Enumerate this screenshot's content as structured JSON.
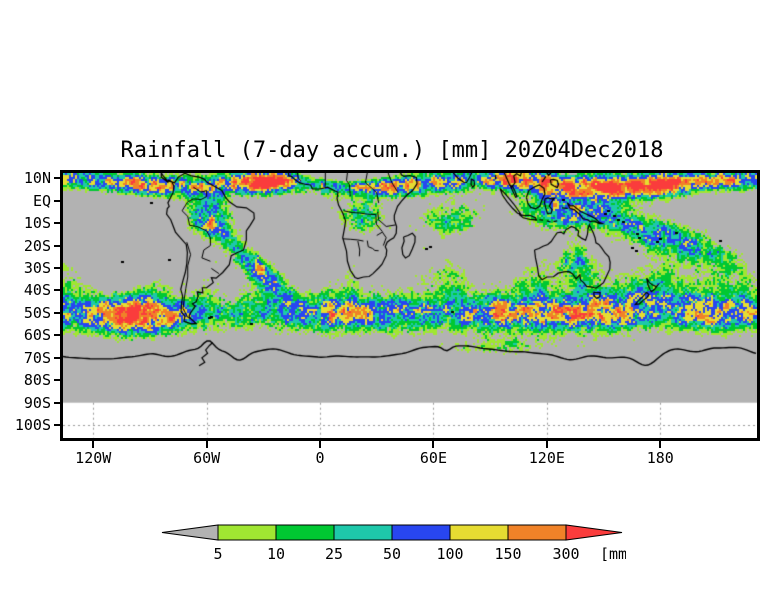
{
  "title": "Rainfall (7-day accum.) [mm] 20Z04Dec2018",
  "axes": {
    "lat_ticks": [
      {
        "label": "10N",
        "value": 10
      },
      {
        "label": "EQ",
        "value": 0
      },
      {
        "label": "10S",
        "value": -10
      },
      {
        "label": "20S",
        "value": -20
      },
      {
        "label": "30S",
        "value": -30
      },
      {
        "label": "40S",
        "value": -40
      },
      {
        "label": "50S",
        "value": -50
      },
      {
        "label": "60S",
        "value": -60
      },
      {
        "label": "70S",
        "value": -70
      },
      {
        "label": "80S",
        "value": -80
      },
      {
        "label": "90S",
        "value": -90
      },
      {
        "label": "100S",
        "value": -100
      }
    ],
    "lon_ticks": [
      {
        "label": "120W",
        "value": -120
      },
      {
        "label": "60W",
        "value": -60
      },
      {
        "label": "0",
        "value": 0
      },
      {
        "label": "60E",
        "value": 60
      },
      {
        "label": "120E",
        "value": 120
      },
      {
        "label": "180",
        "value": 180
      }
    ]
  },
  "legend": {
    "boundary_labels": [
      "5",
      "10",
      "25",
      "50",
      "100",
      "150",
      "300"
    ],
    "unit": "[mm]",
    "segment_colors": [
      "#a0e632",
      "#00c832",
      "#1ec8aa",
      "#2846f0",
      "#e6dc32",
      "#f08228"
    ],
    "left_arrow_color": "#b2b2b2",
    "right_arrow_color": "#fa3c3c",
    "outline_color": "#000000"
  },
  "map": {
    "background_color": "#b2b2b2",
    "no_data_color": "#ffffff",
    "coastline_color": "#000000",
    "gridline_color": "#999999",
    "rain_colors": [
      "#a0e632",
      "#00c832",
      "#1ec8aa",
      "#2846f0",
      "#e6dc32",
      "#f08228",
      "#fa3c3c"
    ]
  },
  "chart_data": {
    "type": "heatmap",
    "title": "Rainfall (7-day accum.) [mm] 20Z04Dec2018",
    "variable": "7-day accumulated rainfall",
    "unit": "mm",
    "valid_time_label": "20Z04Dec2018",
    "x_ticks": [
      "120W",
      "60W",
      "0",
      "60E",
      "120E",
      "180"
    ],
    "y_ticks": [
      "10N",
      "EQ",
      "10S",
      "20S",
      "30S",
      "40S",
      "50S",
      "60S",
      "70S",
      "80S",
      "90S",
      "100S"
    ],
    "x_range_deg_lon": [
      -136,
      231
    ],
    "y_range_deg_lat": [
      12.3,
      -105.7
    ],
    "data_extent_note": "shaded data covers 10N to 90S; area south of 90S is blank with dotted gridlines",
    "color_bins": [
      {
        "range": "<5",
        "color": "#b2b2b2"
      },
      {
        "range": "5-10",
        "color": "#a0e632"
      },
      {
        "range": "10-25",
        "color": "#00c832"
      },
      {
        "range": "25-50",
        "color": "#1ec8aa"
      },
      {
        "range": "50-100",
        "color": "#2846f0"
      },
      {
        "range": "100-150",
        "color": "#e6dc32"
      },
      {
        "range": "150-300",
        "color": "#f08228"
      },
      {
        "range": ">300",
        "color": "#fa3c3c"
      }
    ],
    "legend_position": "bottom",
    "grid": "dotted, visible only south of 90S"
  }
}
